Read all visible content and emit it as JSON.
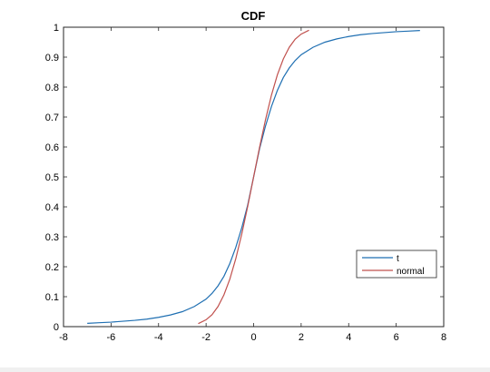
{
  "chart_data": {
    "type": "line",
    "title": "CDF",
    "xlabel": "",
    "ylabel": "",
    "xlim": [
      -8,
      8
    ],
    "ylim": [
      0,
      1
    ],
    "xticks": [
      -8,
      -6,
      -4,
      -2,
      0,
      2,
      4,
      6,
      8
    ],
    "yticks": [
      0,
      0.1,
      0.2,
      0.3,
      0.4,
      0.5,
      0.6,
      0.7,
      0.8,
      0.9,
      1
    ],
    "legend_position": "bottom-right",
    "grid": false,
    "series": [
      {
        "name": "t",
        "color": "#1f6fb2",
        "x": [
          -7,
          -6.5,
          -6,
          -5.5,
          -5,
          -4.5,
          -4,
          -3.5,
          -3,
          -2.5,
          -2,
          -1.75,
          -1.5,
          -1.25,
          -1,
          -0.75,
          -0.5,
          -0.25,
          0,
          0.25,
          0.5,
          0.75,
          1,
          1.25,
          1.5,
          1.75,
          2,
          2.5,
          3,
          3.5,
          4,
          4.5,
          5,
          5.5,
          6,
          6.5,
          7
        ],
        "values": [
          0.011,
          0.013,
          0.015,
          0.018,
          0.021,
          0.025,
          0.031,
          0.039,
          0.05,
          0.067,
          0.092,
          0.111,
          0.136,
          0.168,
          0.211,
          0.265,
          0.33,
          0.406,
          0.5,
          0.594,
          0.67,
          0.735,
          0.789,
          0.832,
          0.864,
          0.889,
          0.908,
          0.933,
          0.95,
          0.961,
          0.969,
          0.975,
          0.979,
          0.982,
          0.985,
          0.987,
          0.989
        ]
      },
      {
        "name": "normal",
        "color": "#c0504d",
        "x": [
          -2.33,
          -2,
          -1.75,
          -1.5,
          -1.25,
          -1,
          -0.75,
          -0.5,
          -0.25,
          0,
          0.25,
          0.5,
          0.75,
          1,
          1.25,
          1.5,
          1.75,
          2,
          2.33
        ],
        "values": [
          0.01,
          0.023,
          0.04,
          0.067,
          0.106,
          0.159,
          0.227,
          0.309,
          0.401,
          0.5,
          0.599,
          0.691,
          0.773,
          0.841,
          0.894,
          0.933,
          0.96,
          0.977,
          0.99
        ]
      }
    ]
  }
}
